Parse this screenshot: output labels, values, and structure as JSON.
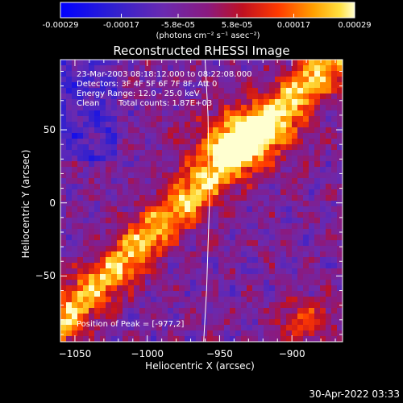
{
  "chart_data": {
    "type": "heatmap",
    "title": "Reconstructed RHESSI Image",
    "xlabel": "Heliocentric X (arcsec)",
    "ylabel": "Heliocentric Y (arcsec)",
    "xlim": [
      -1060,
      -865
    ],
    "ylim": [
      -95,
      98
    ],
    "x_ticks": [
      -1050,
      -1000,
      -950,
      -900
    ],
    "y_ticks": [
      -50,
      0,
      50
    ],
    "colorbar": {
      "range": [
        -0.00029,
        0.00029
      ],
      "tick_values": [
        -0.00029,
        -0.00017,
        -5.8e-05,
        5.8e-05,
        0.00017,
        0.00029
      ],
      "tick_labels": [
        "-0.00029",
        "-0.00017",
        "-5.8e-05",
        "5.8e-05",
        "0.00017",
        "0.00029"
      ],
      "units": "(photons cm⁻² s⁻¹ asec⁻²)"
    },
    "annotations": {
      "time": "23-Mar-2003 08:18:12.000 to 08:22:08.000",
      "detectors": "Detectors: 3F 4F 5F 6F 7F 8F, Att 0",
      "energy": "Energy Range: 12.0 - 25.0 keV",
      "method": "Clean",
      "counts": "Total counts: 1.87E+03",
      "peak": "Position of Peak = [-977,2]"
    },
    "limb_line": [
      [
        -960,
        98
      ],
      [
        -958,
        60
      ],
      [
        -957,
        0
      ],
      [
        -959,
        -60
      ],
      [
        -961,
        -95
      ]
    ]
  },
  "footer": {
    "timestamp": "30-Apr-2022 03:33"
  },
  "colors": {
    "background": "#000000",
    "foreground": "#ffffff"
  }
}
